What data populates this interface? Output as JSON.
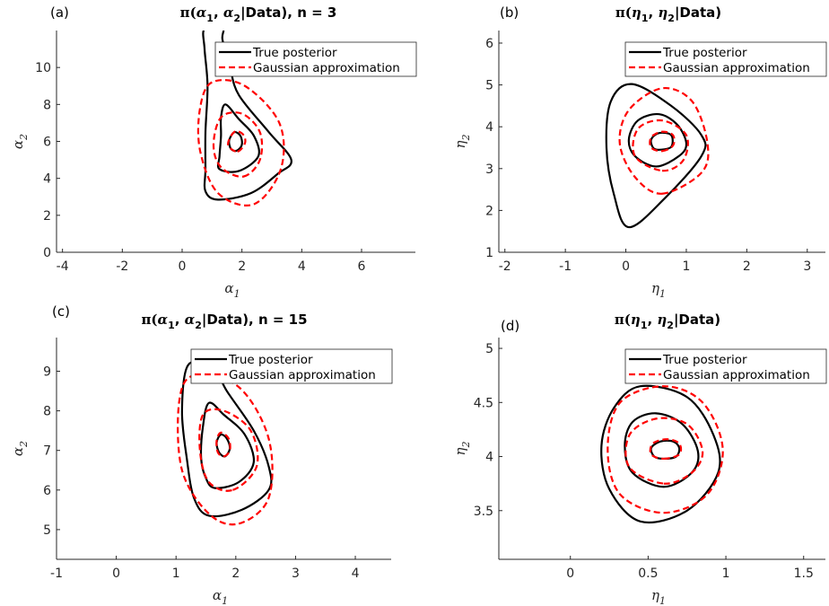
{
  "chart_data": [
    {
      "type": "contour",
      "panel_label": "(a)",
      "title": "π(α1, α2|Data), n = 3",
      "title_parts": {
        "a": "π(",
        "b": "α",
        "c": "1",
        "d": ", ",
        "e": "α",
        "f": "2",
        "g": "|Data), n = 3"
      },
      "xlabel": {
        "sym": "α",
        "sub": "1"
      },
      "ylabel": {
        "sym": "α",
        "sub": "2"
      },
      "xlim": [
        -4.2,
        7.8
      ],
      "ylim": [
        0,
        12
      ],
      "xticks": [
        -4,
        -2,
        0,
        2,
        4,
        6
      ],
      "yticks": [
        0,
        2,
        4,
        6,
        8,
        10
      ],
      "legend": {
        "location": "top-right",
        "items": [
          "True posterior",
          "Gaussian approximation"
        ]
      },
      "series": [
        {
          "name": "True posterior",
          "style": "solid",
          "color": "#000000",
          "contours": [
            [
              [
                1.88,
                5.55
              ],
              [
                2.0,
                5.85
              ],
              [
                1.95,
                6.3
              ],
              [
                1.75,
                6.5
              ],
              [
                1.58,
                6.1
              ],
              [
                1.6,
                5.7
              ],
              [
                1.72,
                5.5
              ]
            ],
            [
              [
                1.25,
                4.5
              ],
              [
                1.9,
                4.4
              ],
              [
                2.55,
                5.2
              ],
              [
                2.4,
                6.3
              ],
              [
                1.9,
                7.2
              ],
              [
                1.45,
                8.0
              ],
              [
                1.3,
                7.3
              ],
              [
                1.3,
                6.3
              ],
              [
                1.25,
                5.2
              ]
            ],
            [
              [
                1.2,
                2.85
              ],
              [
                2.3,
                3.2
              ],
              [
                3.2,
                4.25
              ],
              [
                3.65,
                5.0
              ],
              [
                2.9,
                6.5
              ],
              [
                1.9,
                8.5
              ],
              [
                1.6,
                10.0
              ],
              [
                1.35,
                11.5
              ],
              [
                1.35,
                12.1
              ],
              [
                0.75,
                12.1
              ],
              [
                0.75,
                11.0
              ],
              [
                0.85,
                9.0
              ],
              [
                0.78,
                6.5
              ],
              [
                0.78,
                4.5
              ],
              [
                0.78,
                3.3
              ]
            ]
          ]
        },
        {
          "name": "Gaussian approximation",
          "style": "dashed",
          "color": "#ff0000",
          "contours": [
            [
              [
                1.85,
                5.45
              ],
              [
                2.1,
                5.9
              ],
              [
                2.05,
                6.35
              ],
              [
                1.8,
                6.55
              ],
              [
                1.6,
                6.2
              ],
              [
                1.55,
                5.75
              ]
            ],
            [
              [
                2.05,
                4.1
              ],
              [
                2.6,
                5.0
              ],
              [
                2.6,
                6.5
              ],
              [
                2.0,
                7.5
              ],
              [
                1.3,
                7.3
              ],
              [
                1.05,
                5.8
              ],
              [
                1.3,
                4.6
              ]
            ],
            [
              [
                2.4,
                2.6
              ],
              [
                3.3,
                4.5
              ],
              [
                3.25,
                7.0
              ],
              [
                2.1,
                9.0
              ],
              [
                1.0,
                9.2
              ],
              [
                0.6,
                7.8
              ],
              [
                0.6,
                5.5
              ],
              [
                1.2,
                3.2
              ]
            ]
          ]
        }
      ]
    },
    {
      "type": "contour",
      "panel_label": "(b)",
      "title": "π(η1, η2|Data)",
      "title_parts": {
        "a": "π(",
        "b": "η",
        "c": "1",
        "d": ", ",
        "e": "η",
        "f": "2",
        "g": "|Data)"
      },
      "xlabel": {
        "sym": "η",
        "sub": "1"
      },
      "ylabel": {
        "sym": "η",
        "sub": "2"
      },
      "xlim": [
        -2.1,
        3.3
      ],
      "ylim": [
        1,
        6.3
      ],
      "xticks": [
        -2,
        -1,
        0,
        1,
        2,
        3
      ],
      "yticks": [
        1,
        2,
        3,
        4,
        5,
        6
      ],
      "legend": {
        "location": "top-right",
        "items": [
          "True posterior",
          "Gaussian approximation"
        ]
      },
      "series": [
        {
          "name": "True posterior",
          "style": "solid",
          "color": "#000000",
          "contours": [
            [
              [
                0.55,
                3.45
              ],
              [
                0.75,
                3.52
              ],
              [
                0.75,
                3.8
              ],
              [
                0.55,
                3.85
              ],
              [
                0.42,
                3.7
              ],
              [
                0.45,
                3.5
              ]
            ],
            [
              [
                0.5,
                3.05
              ],
              [
                0.88,
                3.3
              ],
              [
                1.0,
                3.6
              ],
              [
                0.85,
                4.05
              ],
              [
                0.55,
                4.3
              ],
              [
                0.2,
                4.15
              ],
              [
                0.05,
                3.7
              ],
              [
                0.15,
                3.3
              ]
            ],
            [
              [
                0.05,
                1.6
              ],
              [
                0.65,
                2.3
              ],
              [
                1.25,
                3.3
              ],
              [
                1.25,
                3.8
              ],
              [
                0.75,
                4.5
              ],
              [
                0.1,
                5.02
              ],
              [
                -0.25,
                4.6
              ],
              [
                -0.32,
                3.5
              ],
              [
                -0.2,
                2.4
              ]
            ]
          ]
        },
        {
          "name": "Gaussian approximation",
          "style": "dashed",
          "color": "#ff0000",
          "contours": [
            [
              [
                0.6,
                3.42
              ],
              [
                0.78,
                3.55
              ],
              [
                0.78,
                3.8
              ],
              [
                0.6,
                3.88
              ],
              [
                0.42,
                3.75
              ],
              [
                0.42,
                3.5
              ]
            ],
            [
              [
                0.6,
                2.95
              ],
              [
                0.95,
                3.2
              ],
              [
                1.0,
                3.8
              ],
              [
                0.6,
                4.15
              ],
              [
                0.2,
                3.95
              ],
              [
                0.15,
                3.3
              ]
            ],
            [
              [
                0.6,
                2.4
              ],
              [
                1.25,
                2.9
              ],
              [
                1.35,
                3.6
              ],
              [
                1.1,
                4.6
              ],
              [
                0.6,
                4.92
              ],
              [
                0.05,
                4.4
              ],
              [
                -0.1,
                3.6
              ],
              [
                0.15,
                2.8
              ]
            ]
          ]
        }
      ]
    },
    {
      "type": "contour",
      "panel_label": "(c)",
      "title": "π(α1, α2|Data), n = 15",
      "title_parts": {
        "a": "π(",
        "b": "α",
        "c": "1",
        "d": ", ",
        "e": "α",
        "f": "2",
        "g": "|Data), n = 15"
      },
      "xlabel": {
        "sym": "α",
        "sub": "1"
      },
      "ylabel": {
        "sym": "α",
        "sub": "2"
      },
      "xlim": [
        -1,
        4.6
      ],
      "ylim": [
        4.25,
        9.85
      ],
      "xticks": [
        -1,
        0,
        1,
        2,
        3,
        4
      ],
      "yticks": [
        5,
        6,
        7,
        8,
        9
      ],
      "legend": {
        "location": "top-right",
        "items": [
          "True posterior",
          "Gaussian approximation"
        ]
      },
      "series": [
        {
          "name": "True posterior",
          "style": "solid",
          "color": "#000000",
          "contours": [
            [
              [
                1.82,
                6.85
              ],
              [
                1.9,
                7.05
              ],
              [
                1.85,
                7.3
              ],
              [
                1.75,
                7.4
              ],
              [
                1.68,
                7.2
              ],
              [
                1.72,
                6.95
              ]
            ],
            [
              [
                1.65,
                6.05
              ],
              [
                2.05,
                6.2
              ],
              [
                2.3,
                6.7
              ],
              [
                2.15,
                7.4
              ],
              [
                1.8,
                7.9
              ],
              [
                1.55,
                8.2
              ],
              [
                1.45,
                7.6
              ],
              [
                1.42,
                6.8
              ],
              [
                1.5,
                6.3
              ]
            ],
            [
              [
                1.55,
                5.35
              ],
              [
                2.1,
                5.5
              ],
              [
                2.55,
                6.0
              ],
              [
                2.55,
                6.6
              ],
              [
                2.3,
                7.5
              ],
              [
                1.85,
                8.5
              ],
              [
                1.6,
                9.15
              ],
              [
                1.2,
                9.15
              ],
              [
                1.1,
                8.0
              ],
              [
                1.18,
                6.8
              ],
              [
                1.3,
                5.8
              ]
            ]
          ]
        },
        {
          "name": "Gaussian approximation",
          "style": "dashed",
          "color": "#ff0000",
          "contours": [
            [
              [
                1.8,
                6.85
              ],
              [
                1.9,
                7.0
              ],
              [
                1.88,
                7.3
              ],
              [
                1.75,
                7.45
              ],
              [
                1.68,
                7.25
              ],
              [
                1.7,
                6.95
              ]
            ],
            [
              [
                1.95,
                6.0
              ],
              [
                2.35,
                6.6
              ],
              [
                2.25,
                7.5
              ],
              [
                1.8,
                8.0
              ],
              [
                1.45,
                7.9
              ],
              [
                1.4,
                7.0
              ],
              [
                1.55,
                6.2
              ]
            ],
            [
              [
                2.05,
                5.15
              ],
              [
                2.55,
                5.8
              ],
              [
                2.55,
                7.3
              ],
              [
                2.05,
                8.6
              ],
              [
                1.3,
                8.9
              ],
              [
                1.05,
                8.2
              ],
              [
                1.1,
                6.5
              ],
              [
                1.55,
                5.4
              ]
            ]
          ]
        }
      ]
    },
    {
      "type": "contour",
      "panel_label": "(d)",
      "title": "π(η1, η2|Data)",
      "title_parts": {
        "a": "π(",
        "b": "η",
        "c": "1",
        "d": ", ",
        "e": "η",
        "f": "2",
        "g": "|Data)"
      },
      "xlabel": {
        "sym": "η",
        "sub": "1"
      },
      "ylabel": {
        "sym": "η",
        "sub": "2"
      },
      "xlim": [
        -0.46,
        1.64
      ],
      "ylim": [
        3.05,
        5.1
      ],
      "xticks": [
        0,
        0.5,
        1,
        1.5
      ],
      "yticks": [
        3.5,
        4,
        4.5,
        5
      ],
      "legend": {
        "location": "top-right",
        "items": [
          "True posterior",
          "Gaussian approximation"
        ]
      },
      "series": [
        {
          "name": "True posterior",
          "style": "solid",
          "color": "#000000",
          "contours": [
            [
              [
                0.6,
                3.98
              ],
              [
                0.68,
                4.0
              ],
              [
                0.7,
                4.08
              ],
              [
                0.66,
                4.14
              ],
              [
                0.58,
                4.14
              ],
              [
                0.52,
                4.08
              ],
              [
                0.54,
                4.0
              ]
            ],
            [
              [
                0.6,
                3.72
              ],
              [
                0.78,
                3.85
              ],
              [
                0.82,
                4.05
              ],
              [
                0.72,
                4.3
              ],
              [
                0.55,
                4.4
              ],
              [
                0.4,
                4.32
              ],
              [
                0.35,
                4.1
              ],
              [
                0.4,
                3.85
              ]
            ],
            [
              [
                0.45,
                3.4
              ],
              [
                0.75,
                3.5
              ],
              [
                0.95,
                3.85
              ],
              [
                0.92,
                4.2
              ],
              [
                0.75,
                4.55
              ],
              [
                0.45,
                4.65
              ],
              [
                0.28,
                4.45
              ],
              [
                0.2,
                4.1
              ],
              [
                0.25,
                3.7
              ]
            ]
          ]
        },
        {
          "name": "Gaussian approximation",
          "style": "dashed",
          "color": "#ff0000",
          "contours": [
            [
              [
                0.6,
                3.98
              ],
              [
                0.7,
                4.02
              ],
              [
                0.7,
                4.12
              ],
              [
                0.62,
                4.16
              ],
              [
                0.53,
                4.12
              ],
              [
                0.52,
                4.02
              ]
            ],
            [
              [
                0.6,
                3.75
              ],
              [
                0.78,
                3.85
              ],
              [
                0.85,
                4.05
              ],
              [
                0.75,
                4.3
              ],
              [
                0.55,
                4.35
              ],
              [
                0.38,
                4.2
              ],
              [
                0.38,
                3.9
              ]
            ],
            [
              [
                0.6,
                3.48
              ],
              [
                0.88,
                3.65
              ],
              [
                0.98,
                4.07
              ],
              [
                0.85,
                4.5
              ],
              [
                0.6,
                4.65
              ],
              [
                0.32,
                4.5
              ],
              [
                0.24,
                4.07
              ],
              [
                0.32,
                3.65
              ]
            ]
          ]
        }
      ]
    }
  ]
}
